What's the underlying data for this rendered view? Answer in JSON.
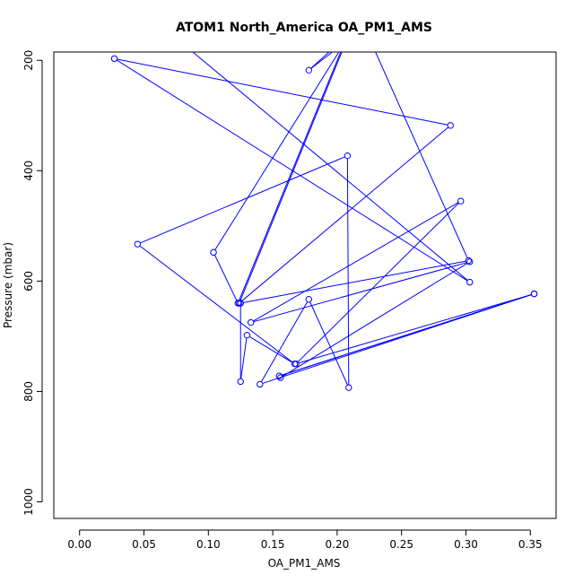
{
  "chart_data": {
    "type": "line",
    "title": "ATOM1 North_America OA_PM1_AMS",
    "xlabel": "OA_PM1_AMS",
    "ylabel": "Pressure (mbar)",
    "xlim": [
      -0.02,
      0.37
    ],
    "ylim": [
      1030,
      185
    ],
    "y_reversed": true,
    "x_ticks": [
      0.0,
      0.05,
      0.1,
      0.15,
      0.2,
      0.25,
      0.3,
      0.35
    ],
    "x_tick_labels": [
      "0.00",
      "0.05",
      "0.10",
      "0.15",
      "0.20",
      "0.25",
      "0.30",
      "0.35"
    ],
    "y_ticks": [
      200,
      400,
      600,
      800,
      1000
    ],
    "y_tick_labels": [
      "200",
      "400",
      "600",
      "800",
      "1000"
    ],
    "grid": false,
    "series": [
      {
        "color": "#0000ff",
        "markers": "open-circle",
        "points": [
          {
            "x": 0.075,
            "y": 160
          },
          {
            "x": 0.303,
            "y": 602
          },
          {
            "x": 0.027,
            "y": 197
          },
          {
            "x": 0.288,
            "y": 318
          },
          {
            "x": 0.124,
            "y": 640
          },
          {
            "x": 0.208,
            "y": 160
          },
          {
            "x": 0.104,
            "y": 548
          },
          {
            "x": 0.123,
            "y": 640
          },
          {
            "x": 0.208,
            "y": 155
          },
          {
            "x": 0.178,
            "y": 218
          },
          {
            "x": 0.21,
            "y": 160
          },
          {
            "x": 0.225,
            "y": 160
          },
          {
            "x": 0.302,
            "y": 563
          },
          {
            "x": 0.125,
            "y": 640
          },
          {
            "x": 0.125,
            "y": 782
          },
          {
            "x": 0.13,
            "y": 698
          },
          {
            "x": 0.167,
            "y": 750
          },
          {
            "x": 0.045,
            "y": 533
          },
          {
            "x": 0.208,
            "y": 373
          },
          {
            "x": 0.209,
            "y": 793
          },
          {
            "x": 0.178,
            "y": 633
          },
          {
            "x": 0.14,
            "y": 787
          },
          {
            "x": 0.353,
            "y": 623
          },
          {
            "x": 0.155,
            "y": 772
          },
          {
            "x": 0.353,
            "y": 623
          },
          {
            "x": 0.168,
            "y": 750
          },
          {
            "x": 0.296,
            "y": 455
          },
          {
            "x": 0.133,
            "y": 675
          },
          {
            "x": 0.303,
            "y": 565
          },
          {
            "x": 0.156,
            "y": 775
          }
        ]
      }
    ]
  }
}
